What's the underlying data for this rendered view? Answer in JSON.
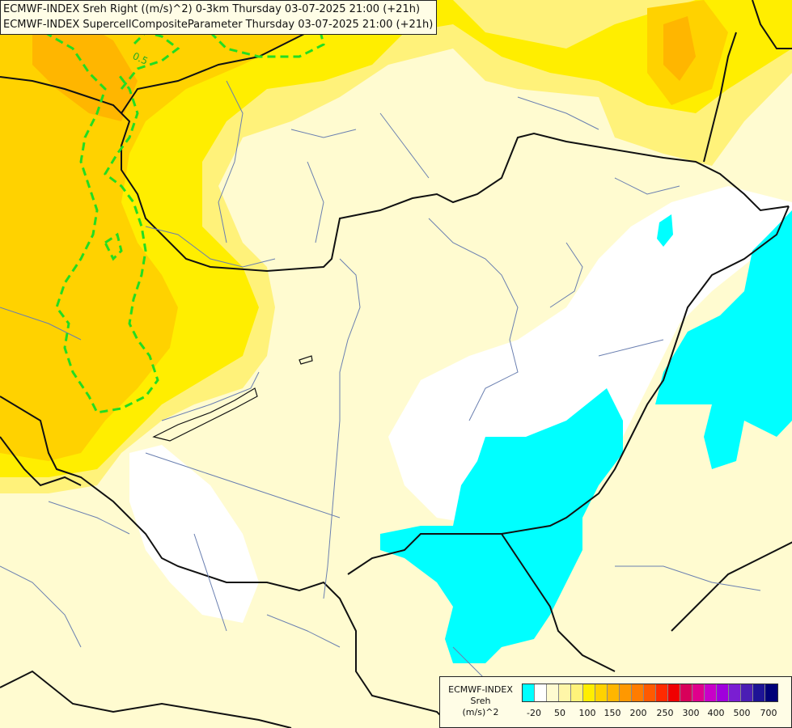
{
  "header": {
    "line1": "ECMWF-INDEX Sreh Right ((m/s)^2) 0-3km Thursday 03-07-2025 21:00 (+21h)",
    "line2": "ECMWF-INDEX SupercellCompositeParameter Thursday 03-07-2025 21:00 (+21h)"
  },
  "contour_label": "0.5",
  "legend": {
    "source": "ECMWF-INDEX",
    "param": "Sreh",
    "unit": "(m/s)^2",
    "colors": [
      "#00ffff",
      "#ffffff",
      "#fffbd0",
      "#fff6a8",
      "#fff27a",
      "#ffee00",
      "#ffd200",
      "#ffb600",
      "#ff9800",
      "#ff7c00",
      "#ff5a00",
      "#ff2b00",
      "#f00000",
      "#d8005a",
      "#e0008c",
      "#c800c8",
      "#a000dc",
      "#7a1ed2",
      "#4b1eb4",
      "#1e1496",
      "#000078"
    ],
    "ticks": [
      "-20",
      "50",
      "100",
      "150",
      "200",
      "250",
      "300",
      "400",
      "500",
      "700"
    ]
  }
}
